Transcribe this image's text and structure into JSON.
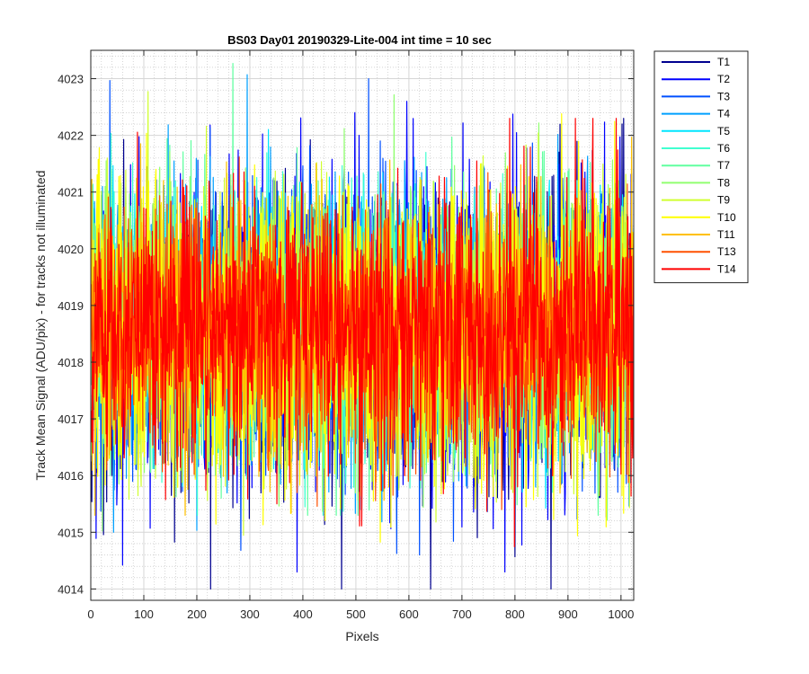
{
  "chart_data": {
    "type": "line",
    "title": "BS03 Day01 20190329-Lite-004 int time = 10 sec",
    "xlabel": "Pixels",
    "ylabel": "Track Mean Signal (ADU/pix) - for tracks not illuminated",
    "xlim": [
      0,
      1024
    ],
    "ylim": [
      4013.8,
      4023.5
    ],
    "xticks": [
      0,
      100,
      200,
      300,
      400,
      500,
      600,
      700,
      800,
      900,
      1000
    ],
    "yticks": [
      4014,
      4015,
      4016,
      4017,
      4018,
      4019,
      4020,
      4021,
      4022,
      4023
    ],
    "grid": true,
    "minor_grid": true,
    "legend_position": "outside-top-right",
    "x_range_points": [
      1,
      1024
    ],
    "series": [
      {
        "name": "T1",
        "color": "#00008f",
        "mean": 4018.5,
        "min": 4014.0,
        "max": 4022.3
      },
      {
        "name": "T2",
        "color": "#0000ff",
        "mean": 4018.5,
        "min": 4014.3,
        "max": 4022.6
      },
      {
        "name": "T3",
        "color": "#0050ff",
        "mean": 4018.6,
        "min": 4014.6,
        "max": 4023.0
      },
      {
        "name": "T4",
        "color": "#00a0ff",
        "mean": 4018.6,
        "min": 4015.0,
        "max": 4023.1
      },
      {
        "name": "T5",
        "color": "#00e5ff",
        "mean": 4018.6,
        "min": 4015.2,
        "max": 4023.0
      },
      {
        "name": "T6",
        "color": "#40ffd0",
        "mean": 4018.6,
        "min": 4015.3,
        "max": 4022.9
      },
      {
        "name": "T7",
        "color": "#60ffa0",
        "mean": 4018.6,
        "min": 4015.3,
        "max": 4023.4
      },
      {
        "name": "T8",
        "color": "#90ff70",
        "mean": 4018.6,
        "min": 4015.0,
        "max": 4023.1
      },
      {
        "name": "T9",
        "color": "#d0ff30",
        "mean": 4018.5,
        "min": 4014.7,
        "max": 4022.8
      },
      {
        "name": "T10",
        "color": "#ffff00",
        "mean": 4018.5,
        "min": 4014.2,
        "max": 4022.6
      },
      {
        "name": "T11",
        "color": "#ffc000",
        "mean": 4018.6,
        "min": 4015.3,
        "max": 4023.2
      },
      {
        "name": "T13",
        "color": "#ff5000",
        "mean": 4018.6,
        "min": 4015.4,
        "max": 4022.4
      },
      {
        "name": "T14",
        "color": "#ff0000",
        "mean": 4018.6,
        "min": 4014.6,
        "max": 4022.3
      }
    ]
  }
}
